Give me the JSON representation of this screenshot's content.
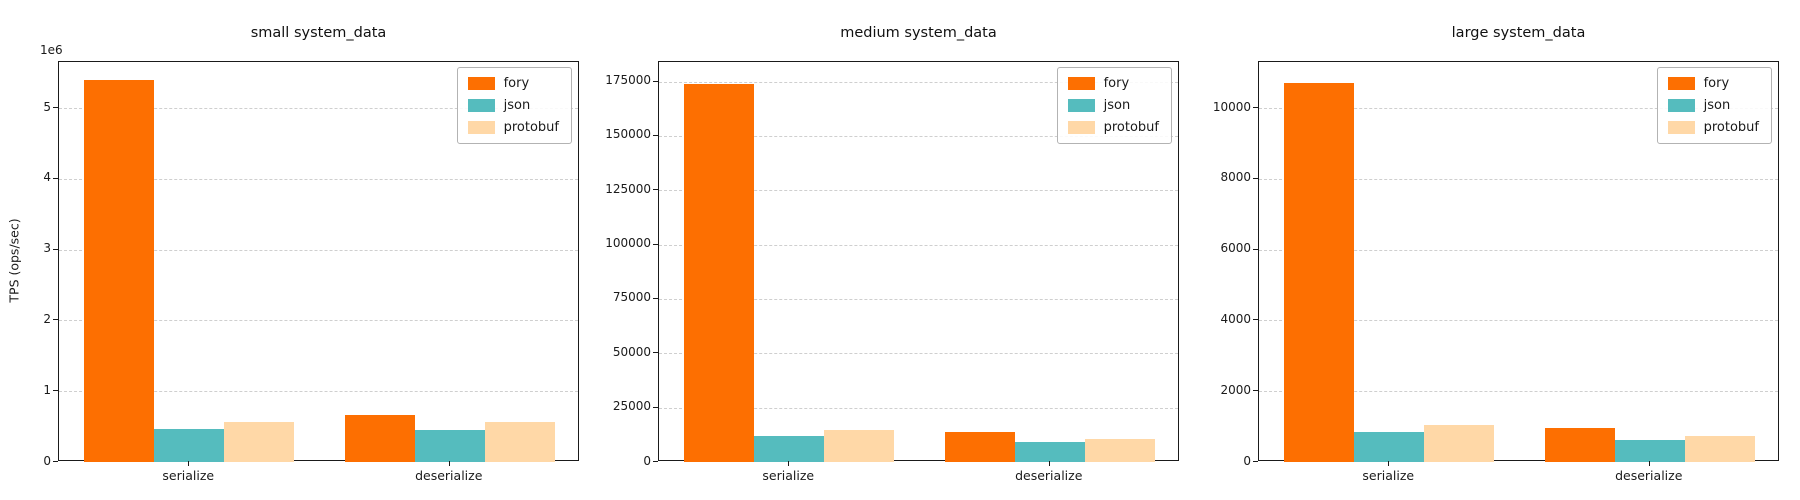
{
  "figure": {
    "ylabel": "TPS (ops/sec)",
    "background": "#ffffff",
    "grid_color": "#cfcfcf",
    "series_names": [
      "fory",
      "json",
      "protobuf"
    ],
    "series_colors": {
      "fory": "#fd6f01",
      "json": "#55bcbe",
      "protobuf": "#ffd8a7"
    }
  },
  "chart_data": [
    {
      "type": "bar",
      "title": "small system_data",
      "ylabel": "TPS (ops/sec)",
      "offset_label": "1e6",
      "xlabel": "",
      "categories": [
        "serialize",
        "deserialize"
      ],
      "series": [
        {
          "name": "fory",
          "color": "#fd6f01",
          "values": [
            5400000,
            660000
          ]
        },
        {
          "name": "json",
          "color": "#55bcbe",
          "values": [
            470000,
            450000
          ]
        },
        {
          "name": "protobuf",
          "color": "#ffd8a7",
          "values": [
            570000,
            560000
          ]
        }
      ],
      "yticks": [
        0,
        1000000,
        2000000,
        3000000,
        4000000,
        5000000
      ],
      "ytick_labels": [
        "0",
        "1",
        "2",
        "3",
        "4",
        "5"
      ],
      "ylim": [
        0,
        5650000
      ],
      "grid": "horizontal-dashed",
      "legend_position": "upper-right"
    },
    {
      "type": "bar",
      "title": "medium system_data",
      "ylabel": "",
      "offset_label": "",
      "xlabel": "",
      "categories": [
        "serialize",
        "deserialize"
      ],
      "series": [
        {
          "name": "fory",
          "color": "#fd6f01",
          "values": [
            174000,
            14000
          ]
        },
        {
          "name": "json",
          "color": "#55bcbe",
          "values": [
            12000,
            9000
          ]
        },
        {
          "name": "protobuf",
          "color": "#ffd8a7",
          "values": [
            14500,
            10500
          ]
        }
      ],
      "yticks": [
        0,
        25000,
        50000,
        75000,
        100000,
        125000,
        150000,
        175000
      ],
      "ytick_labels": [
        "0",
        "25000",
        "50000",
        "75000",
        "100000",
        "125000",
        "150000",
        "175000"
      ],
      "ylim": [
        0,
        184000
      ],
      "grid": "horizontal-dashed",
      "legend_position": "upper-right"
    },
    {
      "type": "bar",
      "title": "large system_data",
      "ylabel": "",
      "offset_label": "",
      "xlabel": "",
      "categories": [
        "serialize",
        "deserialize"
      ],
      "series": [
        {
          "name": "fory",
          "color": "#fd6f01",
          "values": [
            10700,
            950
          ]
        },
        {
          "name": "json",
          "color": "#55bcbe",
          "values": [
            850,
            620
          ]
        },
        {
          "name": "protobuf",
          "color": "#ffd8a7",
          "values": [
            1050,
            730
          ]
        }
      ],
      "yticks": [
        0,
        2000,
        4000,
        6000,
        8000,
        10000
      ],
      "ytick_labels": [
        "0",
        "2000",
        "4000",
        "6000",
        "8000",
        "10000"
      ],
      "ylim": [
        0,
        11300
      ],
      "grid": "horizontal-dashed",
      "legend_position": "upper-right"
    }
  ]
}
